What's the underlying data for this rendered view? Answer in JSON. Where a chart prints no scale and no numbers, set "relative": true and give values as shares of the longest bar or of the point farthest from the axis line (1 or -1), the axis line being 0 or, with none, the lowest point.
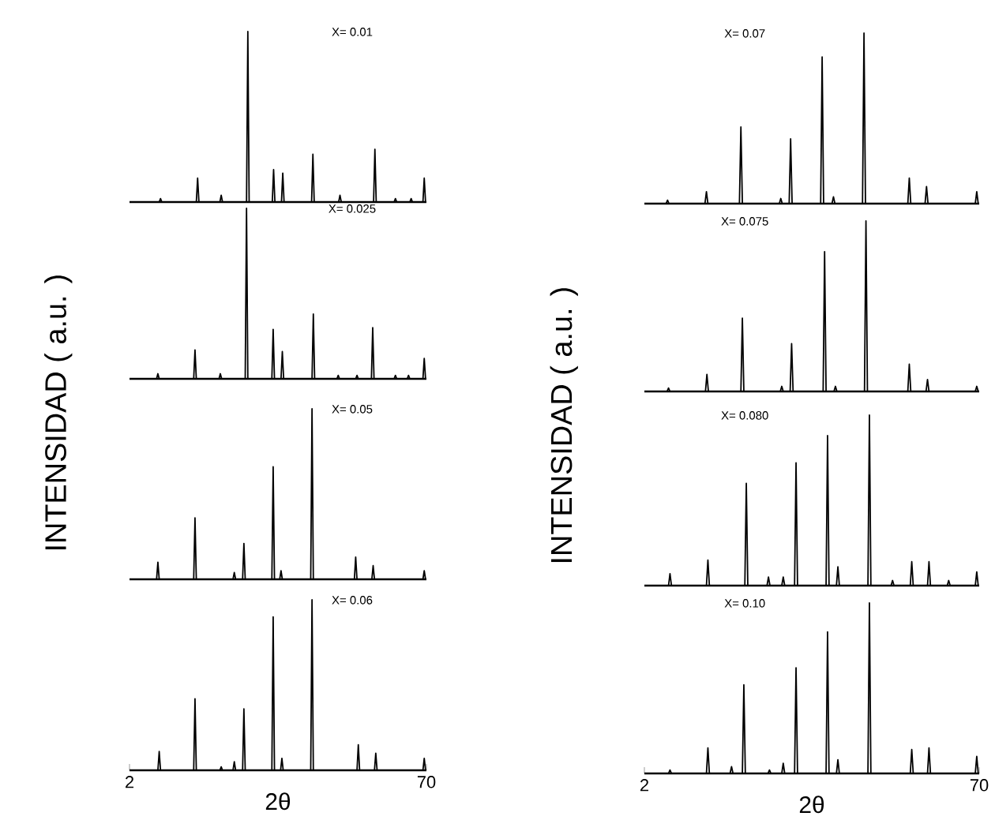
{
  "chart_data": [
    {
      "type": "line",
      "relative": true,
      "title": "X= 0.01",
      "xlim": [
        2,
        70
      ],
      "tick_labels": false,
      "series": [
        {
          "color": "#000000",
          "x": [
            2,
            8.8,
            9.1,
            9.4,
            17.3,
            17.6,
            17.9,
            22.7,
            23,
            23.3,
            28.8,
            29.1,
            29.4,
            34.7,
            35,
            35.3,
            36.8,
            37.1,
            37.4,
            43.7,
            44,
            44.3,
            49.9,
            50.2,
            50.5,
            57.9,
            58.2,
            58.5,
            62.6,
            62.9,
            63.2,
            66.2,
            66.5,
            66.8,
            69.2,
            69.5,
            69.8,
            70
          ],
          "values": [
            0,
            0,
            0.02,
            0,
            0,
            0.14,
            0,
            0,
            0.04,
            0,
            0,
            1,
            0,
            0,
            0.19,
            0,
            0,
            0.17,
            0,
            0,
            0.28,
            0,
            0,
            0.04,
            0,
            0,
            0.31,
            0,
            0,
            0.02,
            0,
            0,
            0.02,
            0,
            0,
            0.14,
            0,
            0
          ]
        }
      ]
    },
    {
      "type": "line",
      "relative": true,
      "title": "X= 0.025",
      "ylabel": "INTENSIDAD ( a.u. )",
      "xlim": [
        2,
        70
      ],
      "tick_labels": false,
      "series": [
        {
          "color": "#000000",
          "x": [
            2,
            8.2,
            8.5,
            8.8,
            16.7,
            17,
            17.3,
            22.5,
            22.8,
            23.1,
            28.5,
            28.8,
            29.1,
            34.6,
            34.9,
            35.2,
            36.7,
            37,
            37.3,
            43.8,
            44.1,
            44.4,
            49.5,
            49.8,
            50.1,
            53.8,
            54.1,
            54.4,
            57.4,
            57.7,
            58,
            62.6,
            62.9,
            63.2,
            65.6,
            65.9,
            66.2,
            69.2,
            69.5,
            69.8,
            70
          ],
          "values": [
            0,
            0,
            0.03,
            0,
            0,
            0.17,
            0,
            0,
            0.03,
            0,
            0,
            1,
            0,
            0,
            0.29,
            0,
            0,
            0.16,
            0,
            0,
            0.38,
            0,
            0,
            0.02,
            0,
            0,
            0.02,
            0,
            0,
            0.3,
            0,
            0,
            0.02,
            0,
            0,
            0.02,
            0,
            0,
            0.12,
            0,
            0
          ]
        }
      ]
    },
    {
      "type": "line",
      "relative": true,
      "title": "X= 0.05",
      "xlim": [
        2,
        70
      ],
      "tick_labels": false,
      "series": [
        {
          "color": "#000000",
          "x": [
            2,
            8.2,
            8.5,
            8.8,
            16.7,
            17,
            17.3,
            25.7,
            26,
            26.3,
            27.9,
            28.2,
            28.5,
            34.6,
            34.9,
            35.2,
            36.4,
            36.7,
            37,
            43.5,
            43.8,
            44.1,
            53.5,
            53.8,
            54.1,
            57.5,
            57.8,
            58.1,
            69.2,
            69.5,
            69.8,
            70
          ],
          "values": [
            0,
            0,
            0.1,
            0,
            0,
            0.36,
            0,
            0,
            0.04,
            0,
            0,
            0.21,
            0,
            0,
            0.66,
            0,
            0,
            0.05,
            0,
            0,
            1,
            0,
            0,
            0.13,
            0,
            0,
            0.08,
            0,
            0,
            0.05,
            0,
            0
          ]
        }
      ]
    },
    {
      "type": "line",
      "relative": true,
      "title": "X= 0.06",
      "xlabel": "2θ",
      "xlim": [
        2,
        70
      ],
      "xticks": [
        2,
        70
      ],
      "tick_labels": "x",
      "series": [
        {
          "color": "#000000",
          "x": [
            2,
            8.5,
            8.8,
            9.1,
            16.7,
            17,
            17.3,
            22.7,
            23,
            23.3,
            25.7,
            26,
            26.3,
            27.9,
            28.2,
            28.5,
            34.6,
            34.9,
            35.2,
            36.6,
            36.9,
            37.2,
            43.5,
            43.8,
            44.1,
            54.1,
            54.4,
            54.7,
            58.1,
            58.4,
            58.7,
            69.2,
            69.5,
            69.8,
            70
          ],
          "values": [
            0,
            0,
            0.11,
            0,
            0,
            0.42,
            0,
            0,
            0.02,
            0,
            0,
            0.05,
            0,
            0,
            0.36,
            0,
            0,
            0.9,
            0,
            0,
            0.07,
            0,
            0,
            1,
            0,
            0,
            0.15,
            0,
            0,
            0.1,
            0,
            0,
            0.07,
            0,
            0
          ]
        }
      ]
    },
    {
      "type": "line",
      "relative": true,
      "title": "X= 0.07",
      "xlim": [
        2,
        70
      ],
      "tick_labels": false,
      "series": [
        {
          "color": "#000000",
          "x": [
            2,
            6.4,
            6.7,
            7,
            14.3,
            14.6,
            14.9,
            21.3,
            21.6,
            21.9,
            29.4,
            29.7,
            30,
            31.4,
            31.7,
            32,
            37.8,
            38.1,
            38.4,
            40.1,
            40.4,
            40.7,
            46.3,
            46.6,
            46.9,
            55.5,
            55.8,
            56.1,
            59,
            59.3,
            59.6,
            69.2,
            69.5,
            69.8,
            70
          ],
          "values": [
            0,
            0,
            0.02,
            0,
            0,
            0.07,
            0,
            0,
            0.45,
            0,
            0,
            0.03,
            0,
            0,
            0.38,
            0,
            0,
            0.86,
            0,
            0,
            0.04,
            0,
            0,
            1,
            0,
            0,
            0.15,
            0,
            0,
            0.1,
            0,
            0,
            0.07,
            0,
            0
          ]
        }
      ]
    },
    {
      "type": "line",
      "relative": true,
      "title": "X= 0.075",
      "ylabel": "INTENSIDAD ( a.u. )",
      "xlim": [
        2,
        70
      ],
      "tick_labels": false,
      "series": [
        {
          "color": "#000000",
          "x": [
            2,
            6.6,
            6.9,
            7.2,
            14.4,
            14.7,
            15,
            21.6,
            21.9,
            22.2,
            29.6,
            29.9,
            30.2,
            31.6,
            31.9,
            32.2,
            38.3,
            38.6,
            38.9,
            40.5,
            40.8,
            41.1,
            46.7,
            47,
            47.3,
            55.5,
            55.8,
            56.1,
            59.2,
            59.5,
            59.8,
            69.2,
            69.5,
            69.8,
            70
          ],
          "values": [
            0,
            0,
            0.02,
            0,
            0,
            0.1,
            0,
            0,
            0.43,
            0,
            0,
            0.03,
            0,
            0,
            0.28,
            0,
            0,
            0.82,
            0,
            0,
            0.03,
            0,
            0,
            1,
            0,
            0,
            0.16,
            0,
            0,
            0.07,
            0,
            0,
            0.03,
            0,
            0
          ]
        }
      ]
    },
    {
      "type": "line",
      "relative": true,
      "title": "X= 0.080",
      "xlim": [
        2,
        70
      ],
      "tick_labels": false,
      "series": [
        {
          "color": "#000000",
          "x": [
            2,
            6.9,
            7.2,
            7.5,
            14.6,
            14.9,
            15.2,
            22.4,
            22.7,
            23,
            26.9,
            27.2,
            27.5,
            29.9,
            30.2,
            30.5,
            32.5,
            32.8,
            33.1,
            38.9,
            39.2,
            39.5,
            41,
            41.3,
            41.6,
            47.4,
            47.7,
            48,
            52.1,
            52.4,
            52.7,
            56,
            56.3,
            56.6,
            59.5,
            59.8,
            60.1,
            63.5,
            63.8,
            64.1,
            69.2,
            69.5,
            69.8,
            70
          ],
          "values": [
            0,
            0,
            0.07,
            0,
            0,
            0.15,
            0,
            0,
            0.6,
            0,
            0,
            0.05,
            0,
            0,
            0.05,
            0,
            0,
            0.72,
            0,
            0,
            0.88,
            0,
            0,
            0.11,
            0,
            0,
            1,
            0,
            0,
            0.03,
            0,
            0,
            0.14,
            0,
            0,
            0.14,
            0,
            0,
            0.03,
            0,
            0,
            0.08,
            0,
            0
          ]
        }
      ]
    },
    {
      "type": "line",
      "relative": true,
      "title": "X= 0.10",
      "xlabel": "2θ",
      "xlim": [
        2,
        70
      ],
      "xticks": [
        2,
        70
      ],
      "tick_labels": "x",
      "series": [
        {
          "color": "#000000",
          "x": [
            2,
            6.9,
            7.2,
            7.5,
            14.6,
            14.9,
            15.2,
            19.4,
            19.7,
            20,
            21.9,
            22.2,
            22.5,
            27.1,
            27.4,
            27.7,
            29.9,
            30.2,
            30.5,
            32.5,
            32.8,
            33.1,
            38.9,
            39.2,
            39.5,
            41,
            41.3,
            41.6,
            47.4,
            47.7,
            48,
            56,
            56.3,
            56.6,
            59.5,
            59.8,
            60.1,
            69.2,
            69.5,
            69.8,
            70
          ],
          "values": [
            0,
            0,
            0.02,
            0,
            0,
            0.15,
            0,
            0,
            0.04,
            0,
            0,
            0.52,
            0,
            0,
            0.02,
            0,
            0,
            0.06,
            0,
            0,
            0.62,
            0,
            0,
            0.83,
            0,
            0,
            0.08,
            0,
            0,
            1,
            0,
            0,
            0.14,
            0,
            0,
            0.15,
            0,
            0,
            0.1,
            0,
            0
          ]
        }
      ]
    }
  ]
}
